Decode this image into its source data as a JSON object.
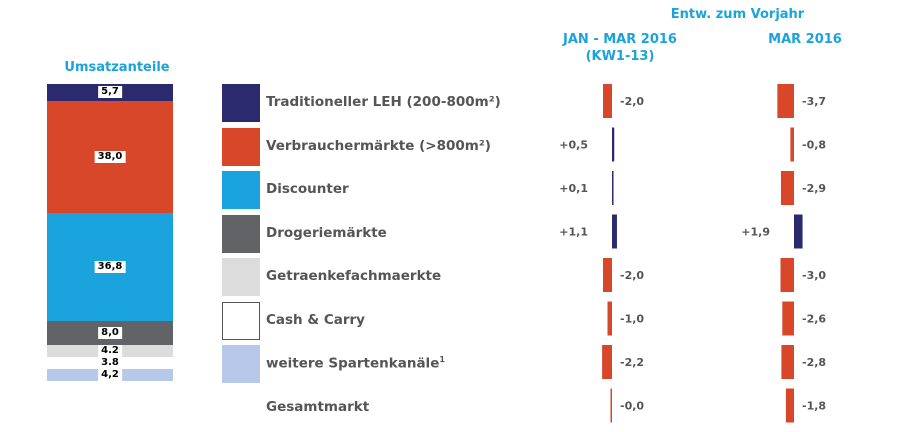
{
  "colors": {
    "accent": "#1aa3dc",
    "positive_bar": "#2b2a6e",
    "negative_bar": "#d9472a"
  },
  "chart_data": {
    "type": "bar",
    "stack": {
      "title": "Umsatzanteile",
      "segments": [
        {
          "label": "5,7",
          "value": 5.7,
          "color": "#2b2a6e"
        },
        {
          "label": "38,0",
          "value": 38.0,
          "color": "#d9472a"
        },
        {
          "label": "36,8",
          "value": 36.8,
          "color": "#1aa3dc"
        },
        {
          "label": "8,0",
          "value": 8.0,
          "color": "#626366"
        },
        {
          "label": "4.2",
          "value": 4.2,
          "color": "#dcdcdc"
        },
        {
          "label": "3.8",
          "value": 3.8,
          "color": "#ffffff"
        },
        {
          "label": "4,2",
          "value": 4.2,
          "color": "#b8c8ea"
        }
      ]
    },
    "header": "Entw. zum Vorjahr",
    "series": [
      {
        "name": "JAN - MAR 2016\n(KW1-13)",
        "values": [
          -2.0,
          0.5,
          0.1,
          1.1,
          -2.0,
          -1.0,
          -2.2,
          -0.0
        ],
        "labels": [
          "-2,0",
          "+0,5",
          "+0,1",
          "+1,1",
          "-2,0",
          "-1,0",
          "-2,2",
          "-0,0"
        ]
      },
      {
        "name": "MAR 2016",
        "values": [
          -3.7,
          -0.8,
          -2.9,
          1.9,
          -3.0,
          -2.6,
          -2.8,
          -1.8
        ],
        "labels": [
          "-3,7",
          "-0,8",
          "-2,9",
          "+1,9",
          "-3,0",
          "-2,6",
          "-2,8",
          "-1,8"
        ]
      }
    ],
    "categories": [
      {
        "label": "Traditioneller LEH (200-800m²)",
        "sup": "",
        "swatch": "#2b2a6e"
      },
      {
        "label": "Verbrauchermärkte (>800m²)",
        "sup": "",
        "swatch": "#d9472a"
      },
      {
        "label": "Discounter",
        "sup": "",
        "swatch": "#1aa3dc"
      },
      {
        "label": "Drogeriemärkte",
        "sup": "",
        "swatch": "#626366"
      },
      {
        "label": "Getraenkefachmaerkte",
        "sup": "",
        "swatch": "#dcdcdc"
      },
      {
        "label": "Cash & Carry",
        "sup": "",
        "swatch": "#ffffff"
      },
      {
        "label": "weitere Spartenkanäle",
        "sup": "1",
        "swatch": "#b8c8ea"
      },
      {
        "label": "Gesamtmarkt",
        "sup": "",
        "swatch": ""
      }
    ]
  }
}
